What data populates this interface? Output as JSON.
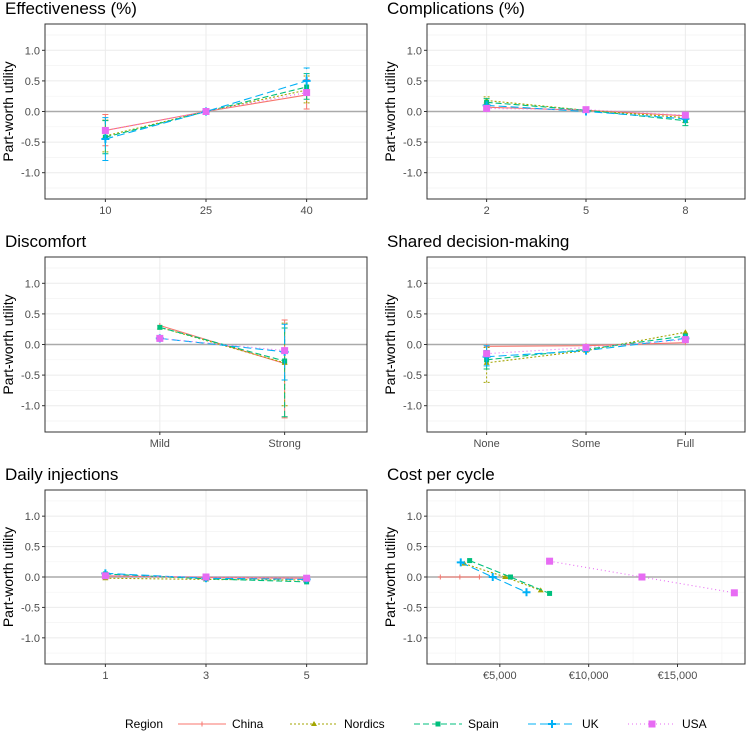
{
  "chart_data": {
    "type": "line",
    "ylabel": "Part-worth utility",
    "ylim": [
      -1.43,
      1.43
    ],
    "yticks": [
      -1.0,
      -0.5,
      0.0,
      0.5,
      1.0
    ],
    "ytick_labels": [
      "-1.0",
      "-0.5",
      "0.0",
      "0.5",
      "1.0"
    ],
    "legend": {
      "title": "Region",
      "position": "bottom",
      "entries": [
        "China",
        "Nordics",
        "Spain",
        "UK",
        "USA"
      ]
    },
    "colors": {
      "China": "#F8766D",
      "Nordics": "#A3A500",
      "Spain": "#00BF7D",
      "UK": "#00B0F6",
      "USA": "#E76BF3"
    },
    "panels": [
      {
        "title": "Effectiveness (%)",
        "x": [
          1,
          2,
          3
        ],
        "xlim": [
          0.4,
          3.6
        ],
        "xticks": [
          1,
          2,
          3
        ],
        "xtick_labels": [
          "10",
          "25",
          "40"
        ],
        "series": [
          {
            "name": "China",
            "values": [
              -0.31,
              0,
              0.27
            ],
            "ci": [
              [
                -0.56,
                -0.05
              ],
              null,
              [
                0.04,
                0.52
              ]
            ]
          },
          {
            "name": "Nordics",
            "values": [
              -0.4,
              0,
              0.35
            ],
            "ci": [
              [
                -0.66,
                -0.14
              ],
              null,
              [
                0.14,
                0.58
              ]
            ]
          },
          {
            "name": "Spain",
            "values": [
              -0.42,
              0,
              0.4
            ],
            "ci": [
              [
                -0.69,
                -0.15
              ],
              null,
              [
                0.2,
                0.62
              ]
            ]
          },
          {
            "name": "UK",
            "values": [
              -0.45,
              0,
              0.5
            ],
            "ci": [
              [
                -0.8,
                -0.1
              ],
              null,
              [
                0.3,
                0.71
              ]
            ]
          },
          {
            "name": "USA",
            "values": [
              -0.31,
              0,
              0.31
            ],
            "ci": null
          }
        ]
      },
      {
        "title": "Complications (%)",
        "x": [
          1,
          2,
          3
        ],
        "xlim": [
          0.4,
          3.6
        ],
        "xticks": [
          1,
          2,
          3
        ],
        "xtick_labels": [
          "2",
          "5",
          "8"
        ],
        "series": [
          {
            "name": "China",
            "values": [
              0.07,
              0.02,
              -0.07
            ],
            "ci": null
          },
          {
            "name": "Nordics",
            "values": [
              0.18,
              0.02,
              -0.1
            ],
            "ci": [
              [
                0.12,
                0.24
              ],
              null,
              [
                -0.18,
                -0.02
              ]
            ]
          },
          {
            "name": "Spain",
            "values": [
              0.15,
              0.02,
              -0.15
            ],
            "ci": [
              [
                0.09,
                0.21
              ],
              null,
              [
                -0.23,
                -0.07
              ]
            ]
          },
          {
            "name": "UK",
            "values": [
              0.1,
              0.0,
              -0.12
            ],
            "ci": null
          },
          {
            "name": "USA",
            "values": [
              0.05,
              0.03,
              -0.06
            ],
            "ci": null
          }
        ]
      },
      {
        "title": "Discomfort",
        "x": [
          1,
          2
        ],
        "xlim": [
          0.08,
          2.66
        ],
        "xticks": [
          1,
          2
        ],
        "xtick_labels": [
          "Mild",
          "Strong"
        ],
        "series": [
          {
            "name": "China",
            "values": [
              0.31,
              -0.31
            ],
            "ci": [
              null,
              [
                -1.2,
                0.4
              ]
            ]
          },
          {
            "name": "Nordics",
            "values": [
              0.28,
              -0.3
            ],
            "ci": [
              null,
              [
                -1.0,
                0.35
              ]
            ]
          },
          {
            "name": "Spain",
            "values": [
              0.28,
              -0.27
            ],
            "ci": [
              null,
              [
                -1.18,
                0.27
              ]
            ]
          },
          {
            "name": "UK",
            "values": [
              0.1,
              -0.12
            ],
            "ci": [
              null,
              [
                -0.58,
                0.33
              ]
            ]
          },
          {
            "name": "USA",
            "values": [
              0.1,
              -0.1
            ],
            "ci": null
          }
        ]
      },
      {
        "title": "Shared decision-making",
        "x": [
          1,
          2,
          3
        ],
        "xlim": [
          0.4,
          3.6
        ],
        "xticks": [
          1,
          2,
          3
        ],
        "xtick_labels": [
          "None",
          "Some",
          "Full"
        ],
        "series": [
          {
            "name": "China",
            "values": [
              -0.03,
              -0.02,
              0.03
            ],
            "ci": null
          },
          {
            "name": "Nordics",
            "values": [
              -0.3,
              -0.1,
              0.2
            ],
            "ci": [
              [
                -0.62,
                -0.05
              ],
              null,
              null
            ]
          },
          {
            "name": "Spain",
            "values": [
              -0.25,
              -0.08,
              0.14
            ],
            "ci": [
              [
                -0.4,
                -0.1
              ],
              null,
              null
            ]
          },
          {
            "name": "UK",
            "values": [
              -0.2,
              -0.1,
              0.1
            ],
            "ci": [
              [
                -0.35,
                -0.02
              ],
              null,
              null
            ]
          },
          {
            "name": "USA",
            "values": [
              -0.15,
              -0.05,
              0.08
            ],
            "ci": null
          }
        ]
      },
      {
        "title": "Daily injections",
        "x": [
          1,
          2,
          3
        ],
        "xlim": [
          0.4,
          3.6
        ],
        "xticks": [
          1,
          2,
          3
        ],
        "xtick_labels": [
          "1",
          "3",
          "5"
        ],
        "series": [
          {
            "name": "China",
            "values": [
              0.02,
              -0.01,
              -0.02
            ],
            "ci": null
          },
          {
            "name": "Nordics",
            "values": [
              -0.02,
              -0.04,
              -0.05
            ],
            "ci": null
          },
          {
            "name": "Spain",
            "values": [
              0.05,
              -0.03,
              -0.08
            ],
            "ci": null
          },
          {
            "name": "UK",
            "values": [
              0.06,
              -0.02,
              -0.04
            ],
            "ci": null
          },
          {
            "name": "USA",
            "values": [
              0.02,
              0.0,
              -0.02
            ],
            "ci": null
          }
        ]
      },
      {
        "title": "Cost per cycle",
        "xlim": [
          900,
          18800
        ],
        "xticks": [
          5000,
          10000,
          15000
        ],
        "xtick_labels": [
          "€5,000",
          "€10,000",
          "€15,000"
        ],
        "xminor": [
          2500,
          7500,
          12500,
          17500
        ],
        "series": [
          {
            "name": "China",
            "x": [
              1650,
              2750,
              3850
            ],
            "values": [
              0,
              0,
              0
            ],
            "ci": null
          },
          {
            "name": "Nordics",
            "x": [
              3000,
              5300,
              7300
            ],
            "values": [
              0.22,
              0,
              -0.22
            ],
            "ci": null
          },
          {
            "name": "Spain",
            "x": [
              3300,
              5600,
              7800
            ],
            "values": [
              0.27,
              0,
              -0.27
            ],
            "ci": null
          },
          {
            "name": "UK",
            "x": [
              2800,
              4600,
              6500
            ],
            "values": [
              0.24,
              0,
              -0.25
            ],
            "ci": null
          },
          {
            "name": "USA",
            "x": [
              7800,
              13000,
              18200
            ],
            "values": [
              0.26,
              0,
              -0.26
            ],
            "ci": null
          }
        ]
      }
    ]
  }
}
